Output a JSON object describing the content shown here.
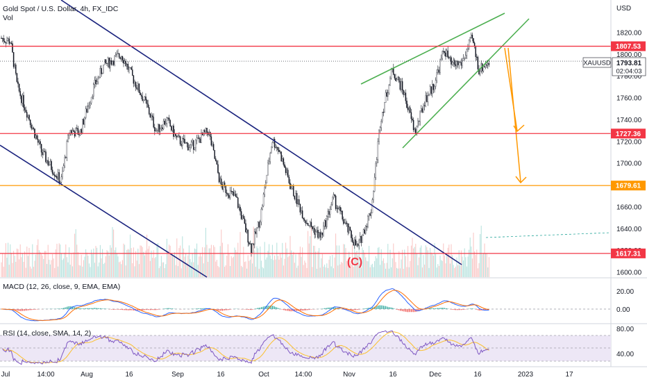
{
  "header": {
    "symbol_title": "Gold Spot / U.S. Dollar, 4h, FX_IDC",
    "volume_label": "Vol"
  },
  "price_axis": {
    "currency": "USD",
    "ticks": [
      "1820.00",
      "1800.00",
      "1780.00",
      "1760.00",
      "1740.00",
      "1720.00",
      "1700.00",
      "1680.00",
      "1660.00",
      "1640.00",
      "1620.00",
      "1600.00"
    ]
  },
  "levels": [
    {
      "label": "1807.53",
      "price": 1807.53,
      "color": "#f23645"
    },
    {
      "label": "1727.36",
      "price": 1727.36,
      "color": "#f23645"
    },
    {
      "label": "1679.61",
      "price": 1679.61,
      "color": "#ff9800"
    },
    {
      "label": "1617.31",
      "price": 1617.31,
      "color": "#f23645"
    }
  ],
  "current_price": {
    "ticker": "XAUUSD",
    "price": "1793.81",
    "countdown": "02:04:03",
    "value": 1793.81
  },
  "wave_label": "(C)",
  "macd": {
    "label": "MACD (12, 26, close, 9, EMA, EMA)",
    "ticks": [
      "20.00",
      "0.00"
    ]
  },
  "rsi": {
    "label": "RSI (14, close, SMA, 14, 2)",
    "ticks": [
      "80.00",
      "40.00"
    ]
  },
  "time_axis": {
    "labels": [
      "Jul",
      "14:00",
      "Aug",
      "16",
      "Sep",
      "16",
      "Oct",
      "14:00",
      "Nov",
      "16",
      "Dec",
      "16",
      "2023",
      "17"
    ]
  },
  "colors": {
    "channel": "#1a237e",
    "wedge": "#4caf50",
    "projection": "#ff9800",
    "level_red": "#f23645",
    "level_orange": "#ff9800",
    "macd_line": "#2962ff",
    "signal_line": "#ff6d00",
    "rsi_line": "#7e57c2",
    "rsi_ma": "#fbc02d",
    "rsi_band": "#ede7f6"
  }
}
